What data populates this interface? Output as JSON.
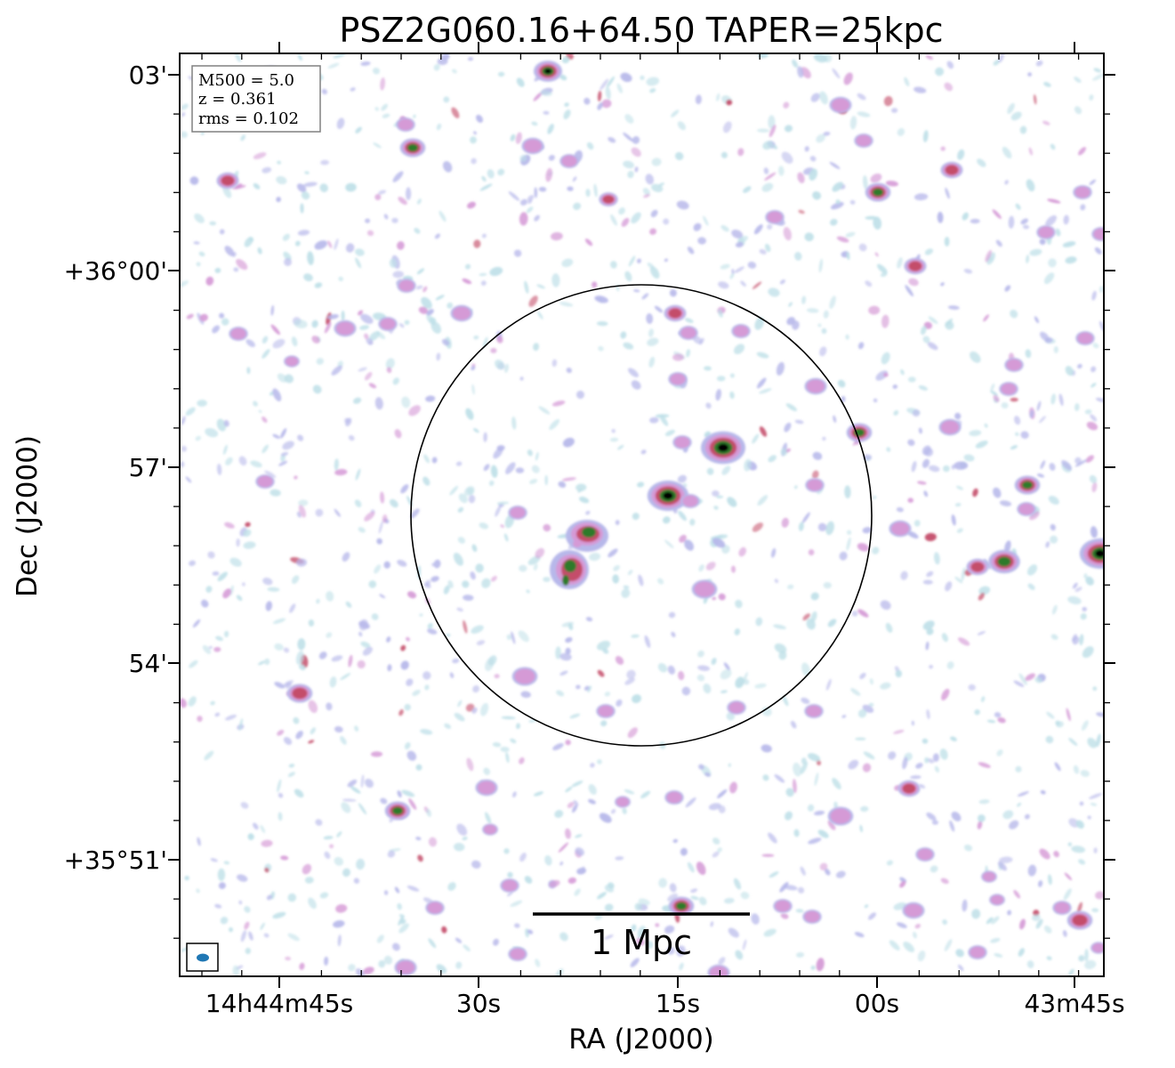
{
  "figure": {
    "title": "PSZ2G060.16+64.50 TAPER=25kpc",
    "xlabel": "RA (J2000)",
    "ylabel": "Dec (J2000)",
    "x_tick_labels": [
      "14h44m45s",
      "30s",
      "15s",
      "00s",
      "43m45s"
    ],
    "y_tick_labels": [
      "03'",
      "+36°00'",
      "57'",
      "54'",
      "+35°51'"
    ],
    "info": {
      "m500": "M500 = 5.0",
      "z": "z = 0.361",
      "rms": "rms = 0.102"
    },
    "scalebar_label": "1 Mpc",
    "colors": {
      "faint": "#bfe0e8",
      "low": "#b7b8ea",
      "mid": "#d59ad6",
      "high": "#c44d6a",
      "peak": "#2f7a2a",
      "core": "#000000",
      "beam": "#1f77b4"
    }
  }
}
